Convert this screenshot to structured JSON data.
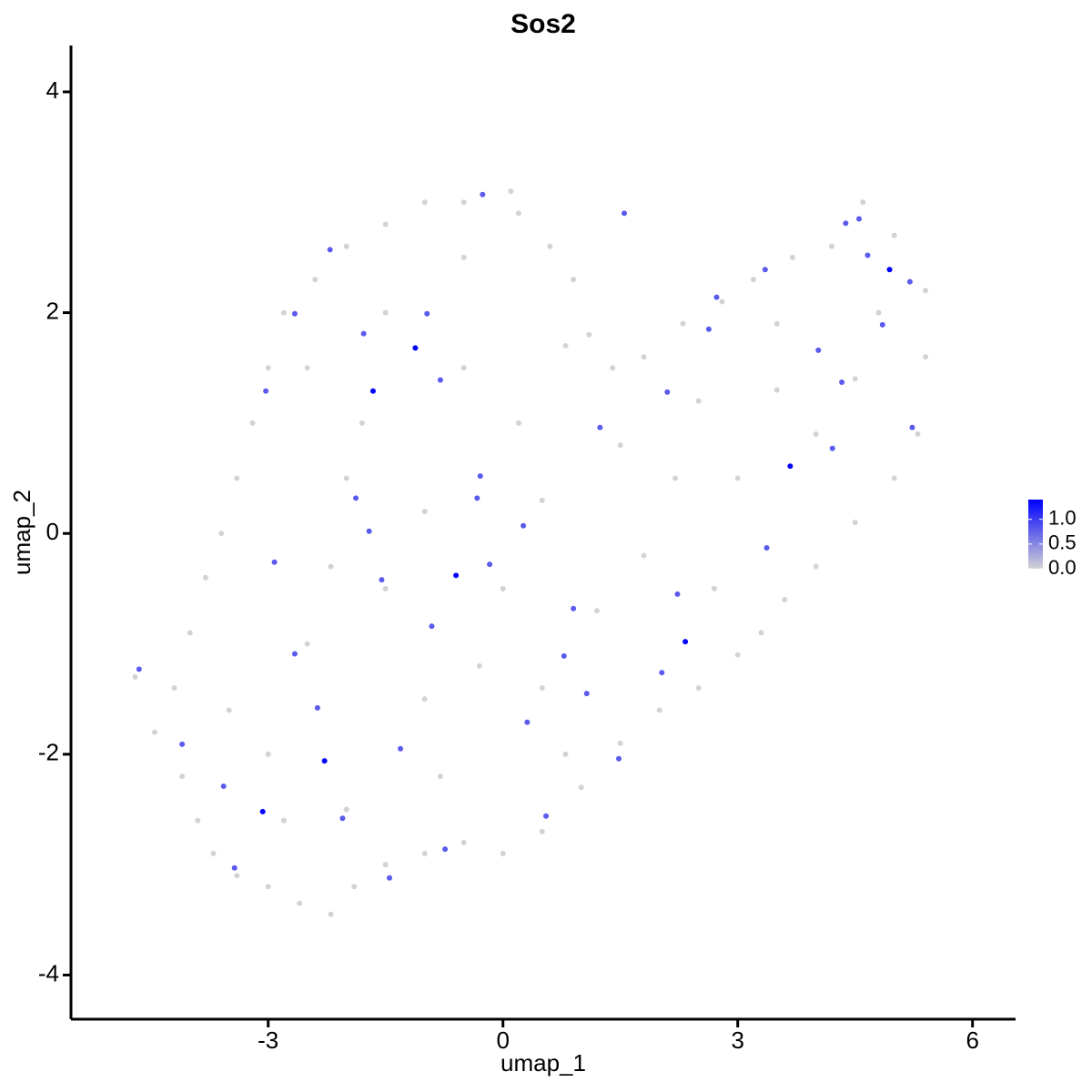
{
  "chart_data": {
    "type": "scatter",
    "title": "Sos2",
    "x_label": "umap_1",
    "y_label": "umap_2",
    "xlim": [
      -5.52,
      6.55
    ],
    "ylim": [
      -4.4,
      4.42
    ],
    "xticks": [
      -3,
      0,
      3,
      6
    ],
    "yticks": [
      -4,
      -2,
      0,
      2,
      4
    ],
    "color_low": "#d3d3d3",
    "color_high": "#0000ff",
    "colorlim": [
      0,
      1.4
    ],
    "color_ticks": [
      {
        "value": 0,
        "label": "0.0"
      },
      {
        "value": 0.5,
        "label": "0.5"
      },
      {
        "value": 1,
        "label": "1.0"
      }
    ],
    "x": [
      -4.7,
      -4.45,
      -4.2,
      -4.1,
      -3.9,
      -3.7,
      -3.4,
      -3.0,
      -2.6,
      -2.2,
      -1.9,
      -1.5,
      -1.0,
      -0.5,
      0.0,
      0.5,
      1.0,
      1.5,
      2.0,
      2.5,
      3.0,
      3.3,
      3.6,
      4.0,
      4.5,
      5.0,
      5.3,
      5.4,
      5.4,
      5.0,
      4.6,
      4.2,
      3.7,
      3.2,
      2.8,
      2.3,
      1.8,
      1.4,
      1.1,
      0.9,
      0.6,
      0.2,
      0.1,
      -0.5,
      -1.0,
      -1.5,
      -2.0,
      -2.4,
      -2.8,
      -3.0,
      -3.2,
      -3.4,
      -3.6,
      -3.8,
      -4.0,
      -3.0,
      -2.5,
      -2.0,
      -1.0,
      -1.5,
      -2.0,
      -2.5,
      -1.5,
      -0.5,
      -0.5,
      0.2,
      0.5,
      0.0,
      -0.3,
      0.5,
      1.2,
      1.8,
      2.2,
      1.5,
      2.5,
      3.0,
      3.5,
      4.0,
      4.5,
      4.8,
      3.5,
      2.7,
      0.8,
      -0.8,
      -2.8,
      -3.5,
      -1.0,
      -2.2,
      0.8,
      -1.8,
      -4.65,
      -3.57,
      -2.21,
      -1.78,
      -0.97,
      -0.8,
      -0.29,
      -0.33,
      -0.17,
      0.26,
      0.9,
      1.07,
      1.48,
      0.55,
      -0.74,
      -1.45,
      -2.66,
      -2.92,
      -3.03,
      -2.66,
      -1.88,
      -1.71,
      2.63,
      2.1,
      3.35,
      4.66,
      4.55,
      5.2,
      4.85,
      5.23,
      4.21,
      4.03,
      3.37,
      2.23,
      2.03,
      -1.31,
      -2.05,
      -3.43,
      1.55,
      -0.26,
      -4.1,
      -2.37,
      -1.55,
      -0.91,
      0.31,
      0.78,
      1.24,
      2.73,
      4.33,
      4.38,
      -1.12,
      -1.66,
      -0.6,
      2.33,
      3.67,
      4.94,
      -2.28,
      -3.07
    ],
    "y": [
      -1.3,
      -1.8,
      -1.4,
      -2.2,
      -2.6,
      -2.9,
      -3.1,
      -3.2,
      -3.35,
      -3.45,
      -3.2,
      -3.0,
      -2.9,
      -2.8,
      -2.9,
      -2.7,
      -2.3,
      -1.9,
      -1.6,
      -1.4,
      -1.1,
      -0.9,
      -0.6,
      -0.3,
      0.1,
      0.5,
      0.9,
      1.6,
      2.2,
      2.7,
      3.0,
      2.6,
      2.5,
      2.3,
      2.1,
      1.9,
      1.6,
      1.5,
      1.8,
      2.3,
      2.6,
      2.9,
      3.1,
      3.0,
      3.0,
      2.8,
      2.6,
      2.3,
      2.0,
      1.5,
      1.0,
      0.5,
      0.0,
      -0.4,
      -0.9,
      -2.0,
      -1.0,
      -2.5,
      -1.5,
      -0.5,
      0.5,
      1.5,
      2.0,
      2.5,
      1.5,
      1.0,
      0.3,
      -0.5,
      -1.2,
      -1.4,
      -0.7,
      -0.2,
      0.5,
      0.8,
      1.2,
      0.5,
      1.3,
      0.9,
      1.4,
      2.0,
      1.9,
      -0.5,
      -2.0,
      -2.2,
      -2.6,
      -1.6,
      0.2,
      -0.3,
      1.7,
      1.0,
      -1.23,
      -2.29,
      2.57,
      1.81,
      1.99,
      1.39,
      0.52,
      0.32,
      -0.28,
      0.07,
      -0.68,
      -1.45,
      -2.04,
      -2.56,
      -2.86,
      -3.12,
      -1.09,
      -0.26,
      1.29,
      1.99,
      0.32,
      0.02,
      1.85,
      1.28,
      2.39,
      2.52,
      2.85,
      2.28,
      1.89,
      0.96,
      0.77,
      1.66,
      -0.13,
      -0.55,
      -1.26,
      -1.95,
      -2.58,
      -3.03,
      2.9,
      3.07,
      -1.91,
      -1.58,
      -0.42,
      -0.84,
      -1.71,
      -1.11,
      0.96,
      2.14,
      1.37,
      2.81,
      1.68,
      1.29,
      -0.38,
      -0.98,
      0.61,
      2.39,
      -2.06,
      -2.52
    ],
    "values": [
      0,
      0,
      0,
      0,
      0,
      0,
      0,
      0,
      0,
      0,
      0,
      0,
      0,
      0,
      0,
      0,
      0,
      0,
      0,
      0,
      0,
      0,
      0,
      0,
      0,
      0,
      0,
      0,
      0,
      0,
      0,
      0,
      0,
      0,
      0,
      0,
      0,
      0,
      0,
      0,
      0,
      0,
      0,
      0,
      0,
      0,
      0,
      0,
      0,
      0,
      0,
      0,
      0,
      0,
      0,
      0,
      0,
      0,
      0,
      0,
      0,
      0,
      0,
      0,
      0,
      0,
      0,
      0,
      0,
      0,
      0,
      0,
      0,
      0,
      0,
      0,
      0,
      0,
      0,
      0,
      0,
      0,
      0,
      0,
      0,
      0,
      0,
      0,
      0,
      0,
      0.8,
      0.8,
      0.8,
      0.8,
      0.8,
      0.8,
      0.8,
      0.8,
      0.8,
      0.8,
      0.8,
      0.8,
      0.8,
      0.8,
      0.8,
      0.8,
      0.8,
      0.8,
      0.8,
      0.8,
      0.8,
      0.8,
      0.8,
      0.8,
      0.8,
      0.8,
      0.8,
      0.8,
      0.8,
      0.8,
      0.8,
      0.8,
      0.8,
      0.8,
      0.8,
      0.8,
      0.8,
      0.8,
      0.8,
      0.8,
      0.8,
      0.8,
      0.8,
      0.8,
      0.8,
      0.8,
      0.8,
      0.8,
      0.8,
      0.8,
      1.4,
      1.4,
      1.4,
      1.4,
      1.4,
      1.4,
      1.4,
      1.4
    ]
  }
}
